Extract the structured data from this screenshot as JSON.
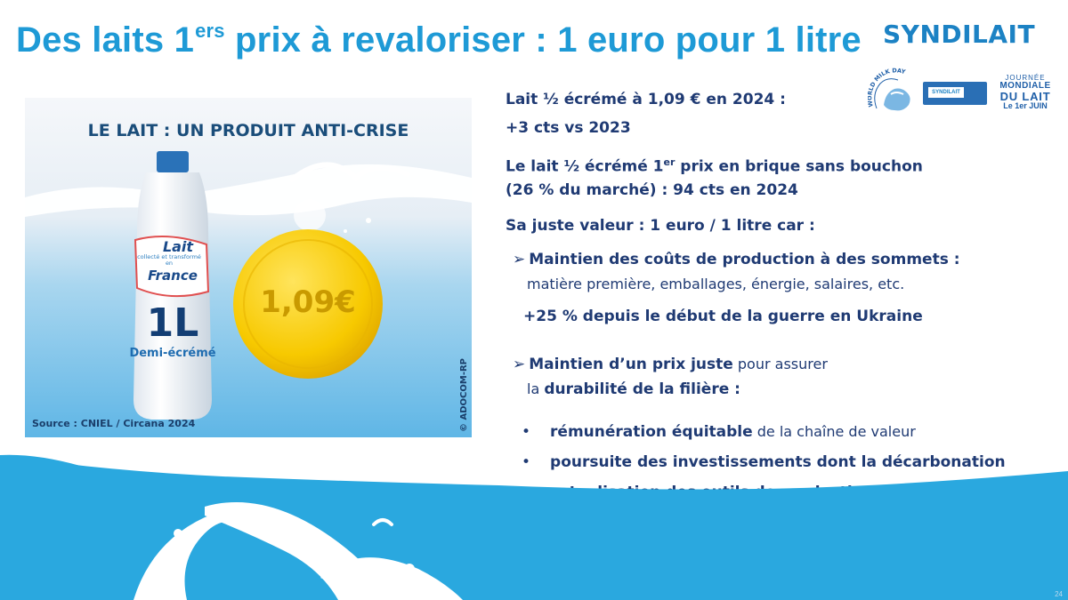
{
  "slide": {
    "title_pre": "Des laits 1",
    "title_sup": "ers",
    "title_post": " prix à revaloriser : 1 euro pour 1 litre",
    "page_number": "24"
  },
  "logo": {
    "brand": "SYNDILAIT",
    "wmd_arc": "WORLD MILK DAY",
    "wmd_flag": "SYNDILAIT",
    "wmd_line1": "JOURNÉE",
    "wmd_line2": "MONDIALE",
    "wmd_line3": "DU LAIT",
    "wmd_line4": "Le 1er JUIN"
  },
  "promo": {
    "title": "LE LAIT : UN PRODUIT ANTI-CRISE",
    "label_lait": "Lait",
    "label_origin": "collecté et transformé en",
    "label_france": "France",
    "volume": "1L",
    "type": "Demi-écrémé",
    "price": "1,09€",
    "source": "Source : CNIEL / Circana 2024",
    "credit": "© ADOCOM-RP"
  },
  "content": {
    "p1_line1": "Lait ½ écrémé à 1,09 € en 2024 :",
    "p1_line2": "+3 cts vs 2023",
    "p2_line1_pre": "Le lait ½ écrémé 1",
    "p2_line1_sup": "er",
    "p2_line1_post": " prix en brique sans bouchon",
    "p2_line2": "(26 % du marché) : 94 cts en 2024",
    "p3": "Sa juste valeur : 1 euro / 1 litre car :",
    "arrow_symbol": "➢",
    "a1_title": "Maintien des coûts de production à des sommets :",
    "a1_detail": "matière première, emballages, énergie, salaires, etc.",
    "a1_stat": "+25 % depuis le début de la guerre en Ukraine",
    "a2_bold": "Maintien d’un prix juste",
    "a2_normal": " pour assurer",
    "a2_line2_pre": "la ",
    "a2_line2_bold": "durabilité de la filière :",
    "bullet_symbol": "•",
    "bullets": [
      {
        "bold": "rémunération équitable",
        "normal": " de la chaîne de valeur"
      },
      {
        "bold": "poursuite des investissements dont la décarbonation",
        "normal": ""
      },
      {
        "bold": "actualisation des outils de production en France",
        "normal": ""
      }
    ]
  },
  "colors": {
    "title_blue": "#1e9ad6",
    "text_navy": "#1f3a73",
    "sea_blue": "#2aa8df",
    "coin_gold": "#f7c900"
  }
}
